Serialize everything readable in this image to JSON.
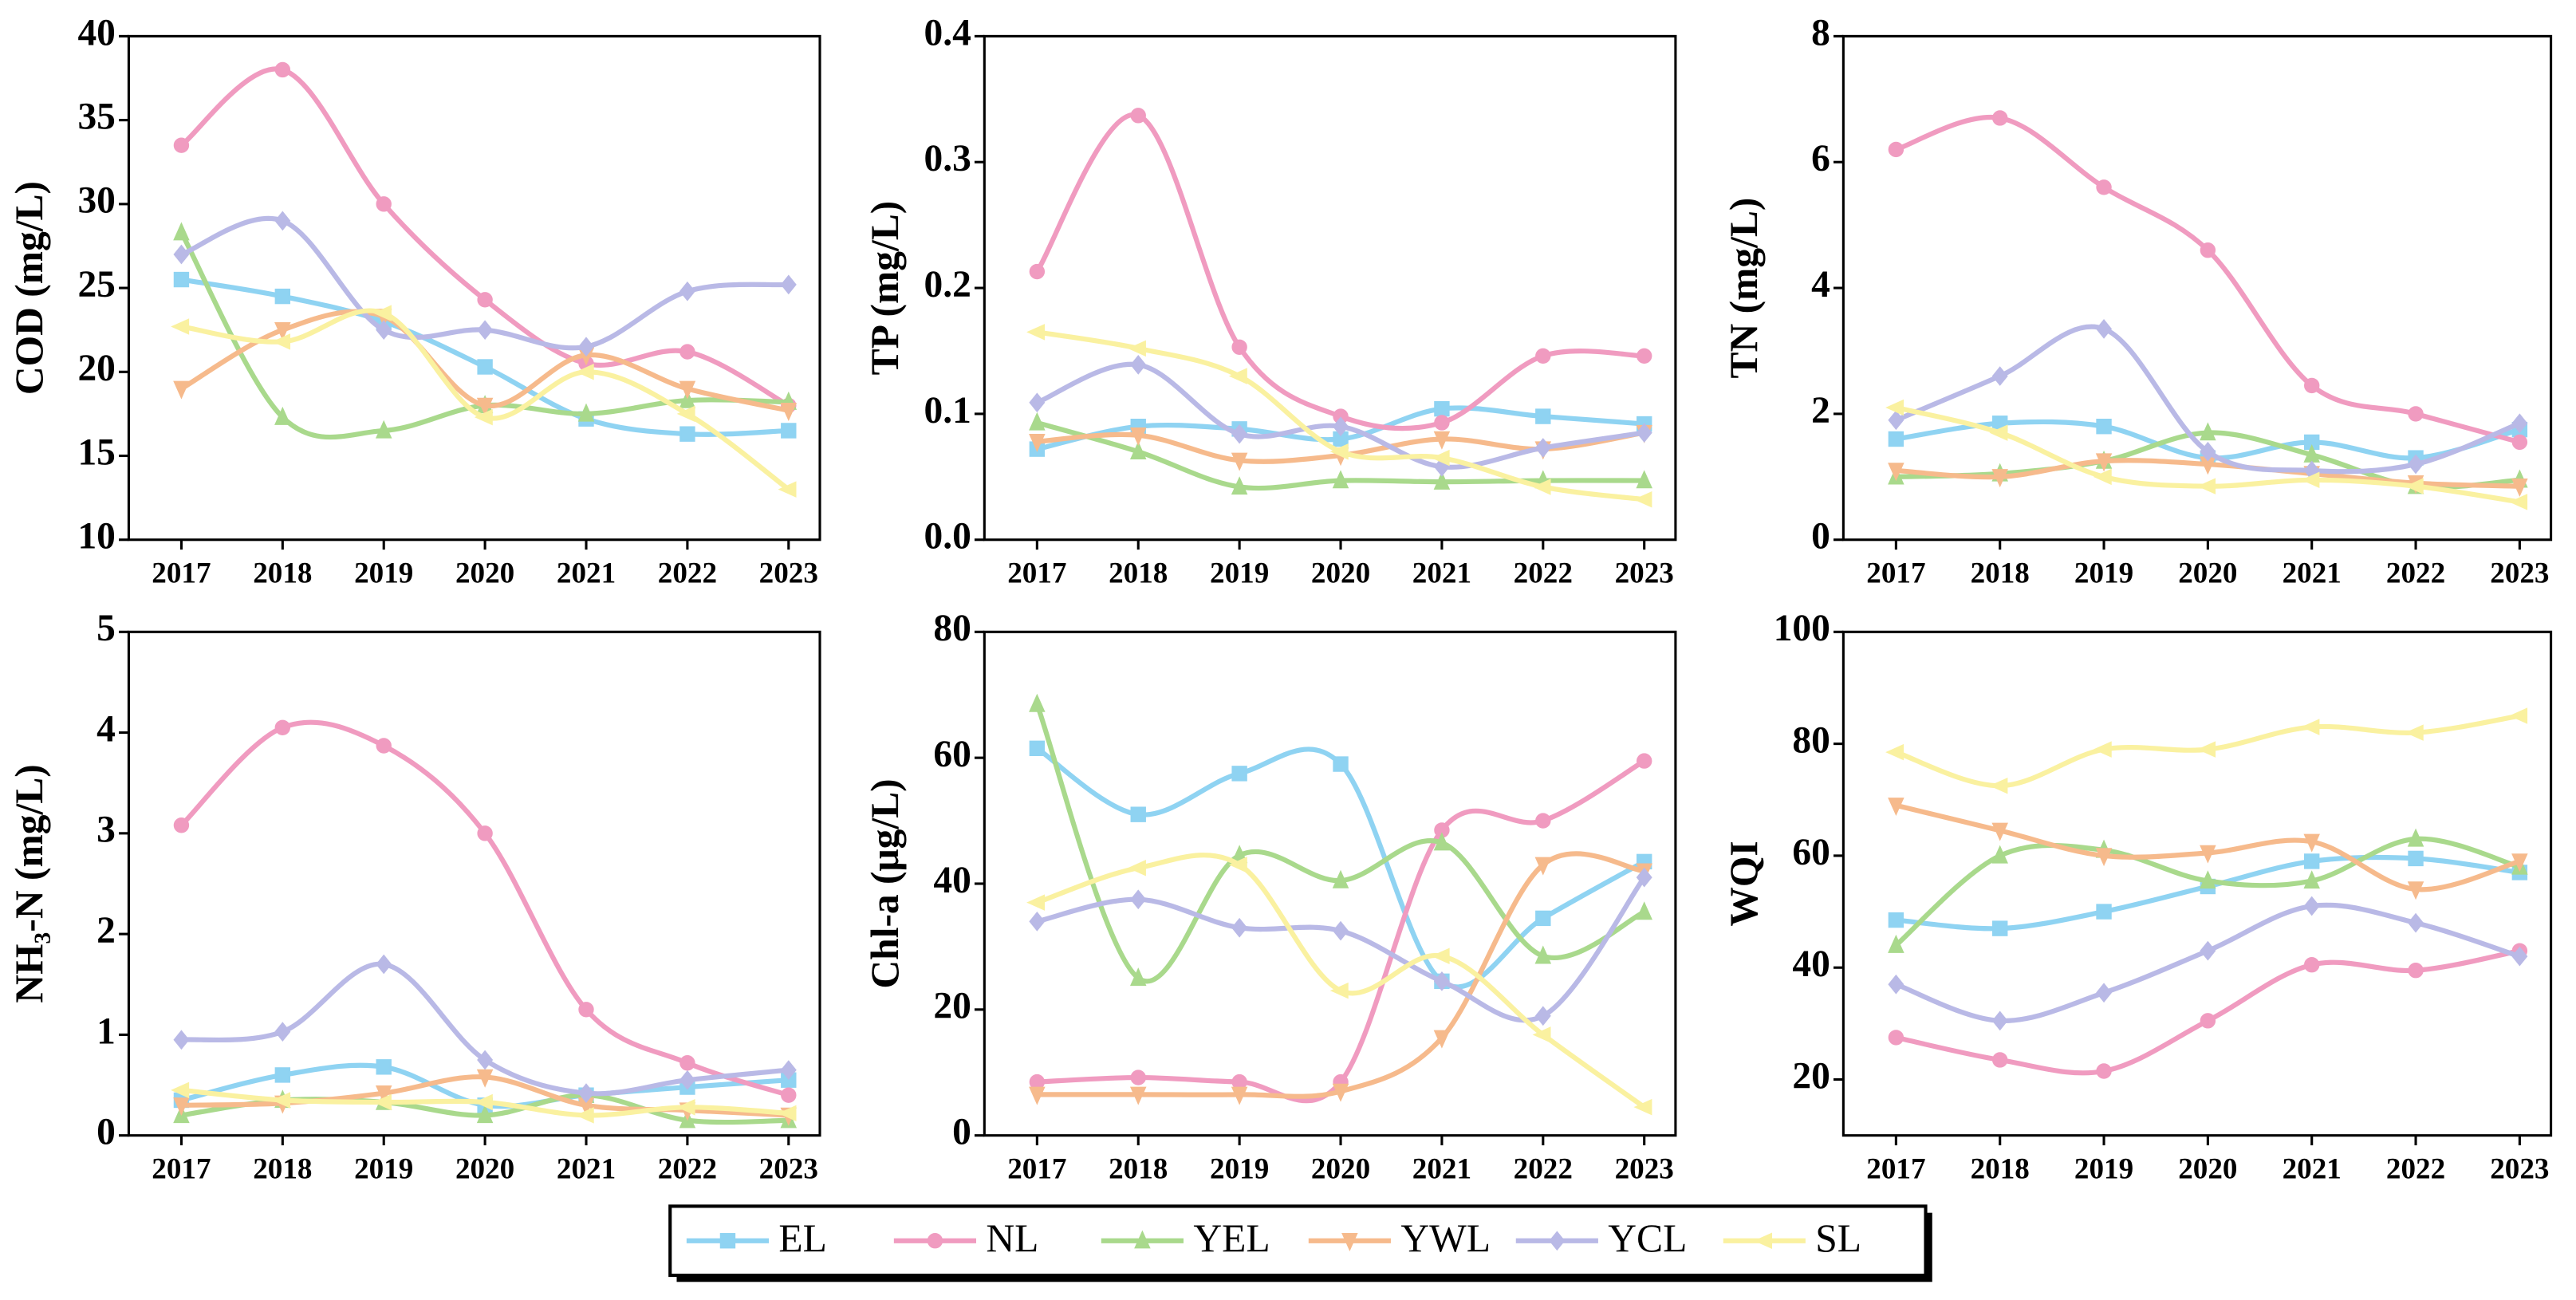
{
  "legend": [
    {
      "name": "EL",
      "color": "#8fd3f2"
    },
    {
      "name": "NL",
      "color": "#f09bc0"
    },
    {
      "name": "YEL",
      "color": "#a9d98c"
    },
    {
      "name": "YWL",
      "color": "#f6ba8c"
    },
    {
      "name": "YCL",
      "color": "#b9b9e6"
    },
    {
      "name": "SL",
      "color": "#faf1a0"
    }
  ],
  "chart_data": [
    {
      "type": "line",
      "y_label": "COD (mg/L)",
      "categories": [
        "2017",
        "2018",
        "2019",
        "2020",
        "2021",
        "2022",
        "2023"
      ],
      "ylim": [
        10,
        40
      ],
      "yticks": [
        10,
        15,
        20,
        25,
        30,
        35,
        40
      ],
      "series": [
        {
          "values": [
            25.5,
            24.5,
            23,
            20.3,
            17.2,
            16.3,
            16.5
          ]
        },
        {
          "values": [
            33.5,
            38,
            30,
            24.3,
            20.5,
            21.2,
            18
          ]
        },
        {
          "values": [
            28.3,
            17.3,
            16.5,
            18,
            17.5,
            18.3,
            18.2
          ]
        },
        {
          "values": [
            19,
            22.5,
            23.3,
            18,
            21,
            19,
            17.7
          ]
        },
        {
          "values": [
            27,
            29,
            22.5,
            22.5,
            21.5,
            24.8,
            25.2
          ]
        },
        {
          "values": [
            22.7,
            21.8,
            23.5,
            17.3,
            20,
            17.5,
            13
          ]
        }
      ]
    },
    {
      "type": "line",
      "y_label": "TP (mg/L)",
      "categories": [
        "2017",
        "2018",
        "2019",
        "2020",
        "2021",
        "2022",
        "2023"
      ],
      "ylim": [
        0,
        0.4
      ],
      "yticks": [
        {
          "value": 0,
          "label": "0.0"
        },
        0.1,
        0.2,
        0.3,
        0.4
      ],
      "series": [
        {
          "values": [
            0.072,
            0.09,
            0.088,
            0.08,
            0.104,
            0.098,
            0.092
          ]
        },
        {
          "values": [
            0.213,
            0.337,
            0.153,
            0.098,
            0.093,
            0.146,
            0.146
          ]
        },
        {
          "values": [
            0.093,
            0.07,
            0.042,
            0.047,
            0.046,
            0.047,
            0.047
          ]
        },
        {
          "values": [
            0.078,
            0.083,
            0.063,
            0.067,
            0.08,
            0.072,
            0.085
          ]
        },
        {
          "values": [
            0.109,
            0.139,
            0.084,
            0.09,
            0.058,
            0.073,
            0.085
          ]
        },
        {
          "values": [
            0.165,
            0.152,
            0.13,
            0.07,
            0.065,
            0.042,
            0.032
          ]
        }
      ]
    },
    {
      "type": "line",
      "y_label": "TN (mg/L)",
      "categories": [
        "2017",
        "2018",
        "2019",
        "2020",
        "2021",
        "2022",
        "2023"
      ],
      "ylim": [
        0,
        8
      ],
      "yticks": [
        0,
        2,
        4,
        6,
        8
      ],
      "series": [
        {
          "values": [
            1.6,
            1.85,
            1.8,
            1.3,
            1.55,
            1.3,
            1.75
          ]
        },
        {
          "values": [
            6.2,
            6.7,
            5.6,
            4.6,
            2.45,
            2.0,
            1.55
          ]
        },
        {
          "values": [
            1.0,
            1.05,
            1.25,
            1.7,
            1.35,
            0.85,
            0.95
          ]
        },
        {
          "values": [
            1.1,
            1.0,
            1.25,
            1.2,
            1.05,
            0.9,
            0.85
          ]
        },
        {
          "values": [
            1.9,
            2.6,
            3.35,
            1.4,
            1.1,
            1.2,
            1.85
          ]
        },
        {
          "values": [
            2.1,
            1.7,
            1.0,
            0.85,
            0.95,
            0.85,
            0.6
          ]
        }
      ]
    },
    {
      "type": "line",
      "y_label": "NH₃-N (mg/L)",
      "categories": [
        "2017",
        "2018",
        "2019",
        "2020",
        "2021",
        "2022",
        "2023"
      ],
      "ylim": [
        0,
        5
      ],
      "yticks": [
        0,
        1,
        2,
        3,
        4,
        5
      ],
      "series": [
        {
          "values": [
            0.35,
            0.6,
            0.68,
            0.3,
            0.4,
            0.48,
            0.55
          ]
        },
        {
          "values": [
            3.08,
            4.05,
            3.87,
            3.0,
            1.25,
            0.72,
            0.4
          ]
        },
        {
          "values": [
            0.2,
            0.35,
            0.33,
            0.2,
            0.4,
            0.15,
            0.15
          ]
        },
        {
          "values": [
            0.3,
            0.32,
            0.42,
            0.58,
            0.3,
            0.25,
            0.2
          ]
        },
        {
          "values": [
            0.95,
            1.03,
            1.7,
            0.75,
            0.42,
            0.55,
            0.65
          ]
        },
        {
          "values": [
            0.45,
            0.35,
            0.33,
            0.33,
            0.2,
            0.28,
            0.22
          ]
        }
      ]
    },
    {
      "type": "line",
      "y_label": "Chl-a (μg/L)",
      "categories": [
        "2017",
        "2018",
        "2019",
        "2020",
        "2021",
        "2022",
        "2023"
      ],
      "ylim": [
        0,
        80
      ],
      "yticks": [
        0,
        20,
        40,
        60,
        80
      ],
      "series": [
        {
          "values": [
            61.5,
            51,
            57.5,
            59,
            24.5,
            34.5,
            43.5
          ]
        },
        {
          "values": [
            8.5,
            9.2,
            8.5,
            8.5,
            48.5,
            50,
            59.5
          ]
        },
        {
          "values": [
            68.5,
            25,
            44.5,
            40.5,
            46.5,
            28.5,
            35.5
          ]
        },
        {
          "values": [
            6.5,
            6.5,
            6.5,
            7,
            15.5,
            43,
            42
          ]
        },
        {
          "values": [
            34,
            37.5,
            33,
            32.5,
            24.5,
            19,
            41
          ]
        },
        {
          "values": [
            37,
            42.5,
            43,
            23,
            28.5,
            16,
            4.5
          ]
        }
      ]
    },
    {
      "type": "line",
      "y_label": "WQI",
      "categories": [
        "2017",
        "2018",
        "2019",
        "2020",
        "2021",
        "2022",
        "2023"
      ],
      "ylim": [
        10,
        100
      ],
      "yticks": [
        20,
        40,
        60,
        80,
        100
      ],
      "series": [
        {
          "values": [
            48.5,
            47,
            50,
            54.5,
            59,
            59.5,
            57
          ]
        },
        {
          "values": [
            27.5,
            23.5,
            21.5,
            30.5,
            40.5,
            39.5,
            43
          ]
        },
        {
          "values": [
            44,
            60,
            61,
            55.5,
            55.5,
            63,
            58
          ]
        },
        {
          "values": [
            69,
            64.5,
            60,
            60.5,
            62.5,
            54,
            59
          ]
        },
        {
          "values": [
            37,
            30.5,
            35.5,
            43,
            51,
            48,
            42
          ]
        },
        {
          "values": [
            78.5,
            72.5,
            79,
            79,
            83,
            82,
            85
          ]
        }
      ]
    }
  ]
}
